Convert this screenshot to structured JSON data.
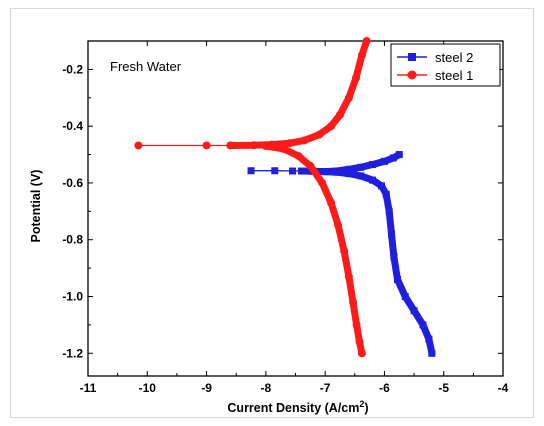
{
  "chart_data": {
    "type": "line",
    "title": "",
    "annotation": "Fresh Water",
    "xlabel": "Current Density (A/cm",
    "xlabel_sup": "2",
    "xlabel_end": ")",
    "ylabel": "Potential (V)",
    "xlim": [
      -11,
      -4
    ],
    "ylim": [
      -1.28,
      -0.1
    ],
    "xticks": [
      -11,
      -10,
      -9,
      -8,
      -7,
      -6,
      -5,
      -4
    ],
    "xtick_labels": [
      "-11",
      "-10",
      "-9",
      "-8",
      "-7",
      "-6",
      "-5",
      "-4"
    ],
    "yticks": [
      -1.2,
      -1.0,
      -0.8,
      -0.6,
      -0.4,
      -0.2
    ],
    "ytick_labels": [
      "-1.2",
      "-1.0",
      "-0.8",
      "-0.6",
      "-0.4",
      "-0.2"
    ],
    "legend_position": "top-right",
    "series": [
      {
        "name": "steel 2",
        "color": "#1f1fdd",
        "marker": "square",
        "points": [
          [
            -8.25,
            -0.557
          ],
          [
            -7.85,
            -0.557
          ],
          [
            -7.55,
            -0.558
          ],
          [
            -7.4,
            -0.558
          ],
          [
            -7.2,
            -0.559
          ],
          [
            -7.0,
            -0.56
          ],
          [
            -6.8,
            -0.558
          ],
          [
            -6.6,
            -0.552
          ],
          [
            -6.4,
            -0.545
          ],
          [
            -6.2,
            -0.535
          ],
          [
            -6.0,
            -0.524
          ],
          [
            -5.85,
            -0.512
          ],
          [
            -5.75,
            -0.5
          ],
          [
            -7.0,
            -0.56
          ],
          [
            -6.8,
            -0.562
          ],
          [
            -6.6,
            -0.567
          ],
          [
            -6.4,
            -0.575
          ],
          [
            -6.2,
            -0.59
          ],
          [
            -6.05,
            -0.61
          ],
          [
            -5.97,
            -0.64
          ],
          [
            -5.92,
            -0.7
          ],
          [
            -5.88,
            -0.78
          ],
          [
            -5.84,
            -0.86
          ],
          [
            -5.78,
            -0.94
          ],
          [
            -5.65,
            -1.0
          ],
          [
            -5.5,
            -1.05
          ],
          [
            -5.35,
            -1.1
          ],
          [
            -5.25,
            -1.15
          ],
          [
            -5.2,
            -1.2
          ]
        ]
      },
      {
        "name": "steel 1",
        "color": "#ff1a1a",
        "marker": "circle",
        "points": [
          [
            -10.15,
            -0.468
          ],
          [
            -9.0,
            -0.468
          ],
          [
            -8.6,
            -0.468
          ],
          [
            -8.2,
            -0.467
          ],
          [
            -7.9,
            -0.465
          ],
          [
            -7.6,
            -0.46
          ],
          [
            -7.35,
            -0.45
          ],
          [
            -7.1,
            -0.43
          ],
          [
            -6.9,
            -0.4
          ],
          [
            -6.75,
            -0.36
          ],
          [
            -6.6,
            -0.3
          ],
          [
            -6.48,
            -0.23
          ],
          [
            -6.38,
            -0.15
          ],
          [
            -6.3,
            -0.1
          ],
          [
            -8.0,
            -0.47
          ],
          [
            -7.7,
            -0.48
          ],
          [
            -7.45,
            -0.505
          ],
          [
            -7.25,
            -0.54
          ],
          [
            -7.05,
            -0.6
          ],
          [
            -6.9,
            -0.67
          ],
          [
            -6.78,
            -0.75
          ],
          [
            -6.68,
            -0.84
          ],
          [
            -6.6,
            -0.93
          ],
          [
            -6.53,
            -1.02
          ],
          [
            -6.47,
            -1.1
          ],
          [
            -6.42,
            -1.16
          ],
          [
            -6.38,
            -1.2
          ]
        ]
      }
    ]
  }
}
